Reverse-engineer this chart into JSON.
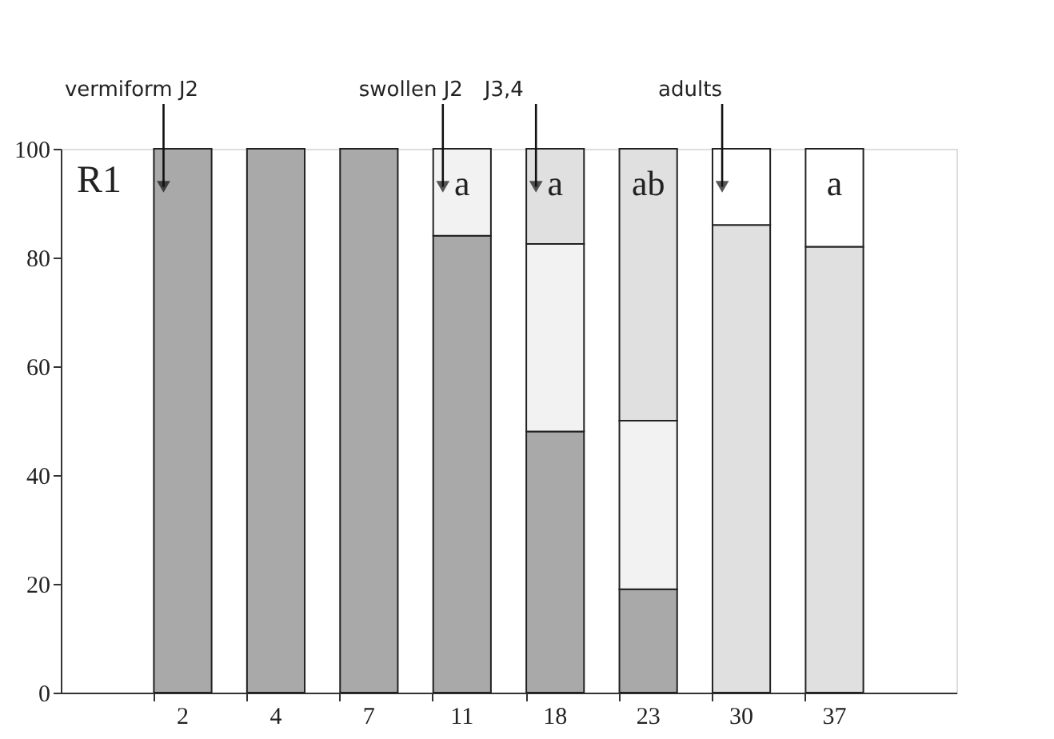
{
  "chart_data": {
    "type": "bar",
    "stacked": true,
    "categories": [
      "2",
      "4",
      "7",
      "11",
      "18",
      "23",
      "30",
      "37"
    ],
    "series": [
      {
        "name": "vermiform J2",
        "color": "#a9a9a9",
        "values": [
          100,
          100,
          100,
          84,
          48,
          19,
          0,
          0
        ]
      },
      {
        "name": "swollen J2",
        "color": "#f2f2f2",
        "values": [
          0,
          0,
          0,
          16,
          34.5,
          31,
          0,
          0
        ]
      },
      {
        "name": "J3,4",
        "color": "#e0e0e0",
        "values": [
          0,
          0,
          0,
          0,
          17.5,
          50,
          86,
          82
        ]
      },
      {
        "name": "adults",
        "color": "#ffffff",
        "values": [
          0,
          0,
          0,
          0,
          0,
          0,
          14,
          18
        ]
      }
    ],
    "ylim": [
      0,
      100
    ],
    "yticks": [
      0,
      20,
      40,
      60,
      80,
      100
    ],
    "grid": false,
    "legend": false,
    "annotations": [
      "R1",
      {
        "text": "a",
        "x": "11",
        "y": 100
      },
      {
        "text": "a",
        "x": "18",
        "y": 100
      },
      {
        "text": "ab",
        "x": "23",
        "y": 100
      },
      {
        "text": "a",
        "x": "37",
        "y": 100
      }
    ]
  }
}
